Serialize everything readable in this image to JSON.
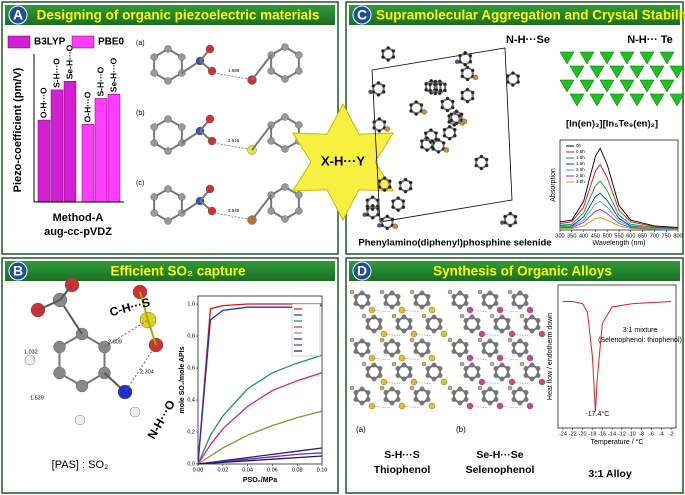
{
  "center_label": "X-H···Y",
  "panels": [
    {
      "letter": "A",
      "title": "Designing of organic piezoelectric materials",
      "sublabels": [
        "(a)",
        "(b)",
        "(c)"
      ],
      "distances": [
        "1.999",
        "2.515",
        "2.540"
      ],
      "chart": {
        "type": "bar",
        "y_label": "Piezo-coefficient (pm/V)",
        "x_label_lines": [
          "Method-A",
          "aug-cc-pVDZ"
        ],
        "categories": [
          "O-H···O",
          "S-H···O",
          "Se-H···O"
        ],
        "series": [
          {
            "name": "B3LYP",
            "color": "#d21fd2",
            "values": [
              19,
              26,
              28
            ]
          },
          {
            "name": "PBE0",
            "color": "#ff3cff",
            "values": [
              18,
              24,
              25
            ]
          }
        ],
        "ylim": [
          0,
          32
        ]
      }
    },
    {
      "letter": "B",
      "title": "Efficient SO₂ capture",
      "labels": [
        "C-H···S",
        "N-H···O",
        "[PAS] : SO₂"
      ],
      "distances": [
        "1.032",
        "1.539",
        "2.609",
        "2.304"
      ],
      "chart": {
        "type": "line",
        "y_label": "mole SO₂/mole APIs",
        "x_label": "PSO₂/MPa",
        "x": [
          0,
          0.01,
          0.02,
          0.04,
          0.06,
          0.08,
          0.1
        ],
        "series": [
          {
            "color": "#e01010",
            "values": [
              0,
              0.97,
              0.99,
              1.0,
              1.0,
              1.0,
              1.0
            ]
          },
          {
            "color": "#2030d0",
            "values": [
              0,
              0.9,
              0.96,
              0.98,
              0.98,
              0.98,
              0.99
            ]
          },
          {
            "color": "#1a9a60",
            "values": [
              0,
              0.18,
              0.3,
              0.47,
              0.57,
              0.63,
              0.68
            ]
          },
          {
            "color": "#e0207a",
            "values": [
              0,
              0.12,
              0.22,
              0.36,
              0.46,
              0.52,
              0.57
            ]
          },
          {
            "color": "#a08a30",
            "values": [
              0,
              0.05,
              0.1,
              0.18,
              0.24,
              0.29,
              0.33
            ]
          },
          {
            "color": "#202080",
            "values": [
              0,
              0.01,
              0.02,
              0.04,
              0.06,
              0.08,
              0.1
            ]
          },
          {
            "color": "#8030a0",
            "values": [
              0,
              0.01,
              0.015,
              0.03,
              0.045,
              0.06,
              0.07
            ]
          },
          {
            "color": "#102060",
            "values": [
              0,
              0.005,
              0.01,
              0.02,
              0.03,
              0.04,
              0.05
            ]
          }
        ],
        "xlim": [
          0,
          0.1
        ],
        "ylim": [
          0,
          1.05
        ],
        "xticks": [
          {
            "value": 0,
            "label": "0.00"
          },
          {
            "value": 0.02,
            "label": "0.02"
          },
          {
            "value": 0.04,
            "label": "0.04"
          },
          {
            "value": 0.06,
            "label": "0.06"
          },
          {
            "value": 0.08,
            "label": "0.08"
          },
          {
            "value": 0.1,
            "label": "0.10"
          }
        ],
        "yticks": [
          {
            "value": 0,
            "label": "0.0"
          },
          {
            "value": 0.2,
            "label": "0.2"
          },
          {
            "value": 0.4,
            "label": "0.4"
          },
          {
            "value": 0.6,
            "label": "0.6"
          },
          {
            "value": 0.8,
            "label": "0.8"
          },
          {
            "value": 1,
            "label": "1.0"
          }
        ]
      }
    },
    {
      "letter": "C",
      "title": "Supramolecular Aggregation and Crystal Stability",
      "labels": [
        "N-H···Se",
        "N-H··· Te",
        "Phenylamino(diphenyl)phosphine selenide",
        "[In(en)₃][In₅Te₉(en)₂]"
      ],
      "chart": {
        "type": "line",
        "y_label": "Absorption",
        "x_label": "Wavelength (nm)",
        "x": [
          300,
          350,
          400,
          450,
          470,
          500,
          550,
          600,
          700,
          800
        ],
        "series": [
          {
            "name": "0h",
            "color": "#000000",
            "values": [
              0.1,
              0.12,
              0.35,
              0.9,
              1.0,
              0.8,
              0.3,
              0.12,
              0.05,
              0.03
            ]
          },
          {
            "name": "0.5h",
            "color": "#e01010",
            "values": [
              0.08,
              0.1,
              0.28,
              0.72,
              0.8,
              0.64,
              0.24,
              0.1,
              0.04,
              0.02
            ]
          },
          {
            "name": "1.0h",
            "color": "#10a010",
            "values": [
              0.06,
              0.07,
              0.21,
              0.54,
              0.6,
              0.48,
              0.18,
              0.07,
              0.03,
              0.02
            ]
          },
          {
            "name": "1.5h",
            "color": "#1030e0",
            "values": [
              0.05,
              0.05,
              0.16,
              0.41,
              0.45,
              0.36,
              0.14,
              0.05,
              0.02,
              0.01
            ]
          },
          {
            "name": "2.0h",
            "color": "#10c0d0",
            "values": [
              0.04,
              0.04,
              0.12,
              0.32,
              0.35,
              0.28,
              0.11,
              0.04,
              0.02,
              0.01
            ]
          },
          {
            "name": "2.5h",
            "color": "#d010d0",
            "values": [
              0.03,
              0.03,
              0.09,
              0.23,
              0.25,
              0.2,
              0.08,
              0.03,
              0.01,
              0.01
            ]
          },
          {
            "name": "3.0h",
            "color": "#c0a000",
            "values": [
              0.02,
              0.02,
              0.05,
              0.14,
              0.15,
              0.12,
              0.05,
              0.02,
              0.01,
              0
            ]
          }
        ],
        "xlim": [
          300,
          800
        ],
        "ylim": [
          0,
          1.1
        ],
        "xticks": [
          300,
          350,
          400,
          450,
          500,
          550,
          600,
          650,
          700,
          750,
          800
        ]
      }
    },
    {
      "letter": "D",
      "title": "Synthesis of Organic Alloys",
      "labels": [
        "(a)",
        "(b)",
        "S-H···S",
        "Thiophenol",
        "Se-H···Se",
        "Selenophenol",
        "3:1 Alloy"
      ],
      "chart": {
        "type": "line",
        "y_label": "Heat flow / endotherm down",
        "x_label": "Temperature / °C",
        "annotations": [
          "-17.4°C",
          "3:1 mixture",
          "(Selenophenol: thiophenol)"
        ],
        "x": [
          -24,
          -22,
          -20,
          -19,
          -18,
          -17.4,
          -17,
          -16,
          -14,
          -10,
          -6,
          -2
        ],
        "series": [
          {
            "color": "#e02020",
            "values": [
              0,
              0,
              -0.02,
              -0.1,
              -0.5,
              -1,
              -0.7,
              -0.2,
              -0.05,
              -0.02,
              -0.01,
              0
            ]
          }
        ],
        "xlim": [
          -25,
          -1
        ],
        "ylim": [
          -1.15,
          0.15
        ],
        "xticks": [
          -24,
          -22,
          -20,
          -18,
          -16,
          -14,
          -12,
          -10,
          -8,
          -6,
          -4,
          -2
        ]
      }
    }
  ]
}
